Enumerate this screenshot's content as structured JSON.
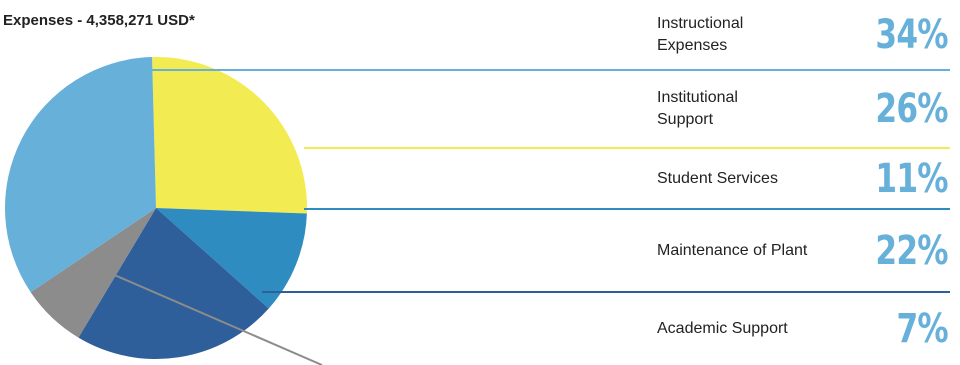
{
  "chart_data": {
    "type": "pie",
    "title": "Expenses - 4,358,271 USD*",
    "slices": [
      {
        "label": "Instructional\nExpenses",
        "value": 34,
        "display": "34%",
        "color": "#66b0da"
      },
      {
        "label": "Institutional\nSupport",
        "value": 26,
        "display": "26%",
        "color": "#f2ec52"
      },
      {
        "label": "Student Services",
        "value": 11,
        "display": "11%",
        "color": "#2f8cc0"
      },
      {
        "label": "Maintenance of Plant",
        "value": 22,
        "display": "22%",
        "color": "#2f5f9a"
      },
      {
        "label": "Academic Support",
        "value": 7,
        "display": "7%",
        "color": "#8c8c8c"
      }
    ],
    "legend_placement": "right"
  },
  "colors": {
    "percent_text": "#66b0da",
    "text": "#222222"
  }
}
